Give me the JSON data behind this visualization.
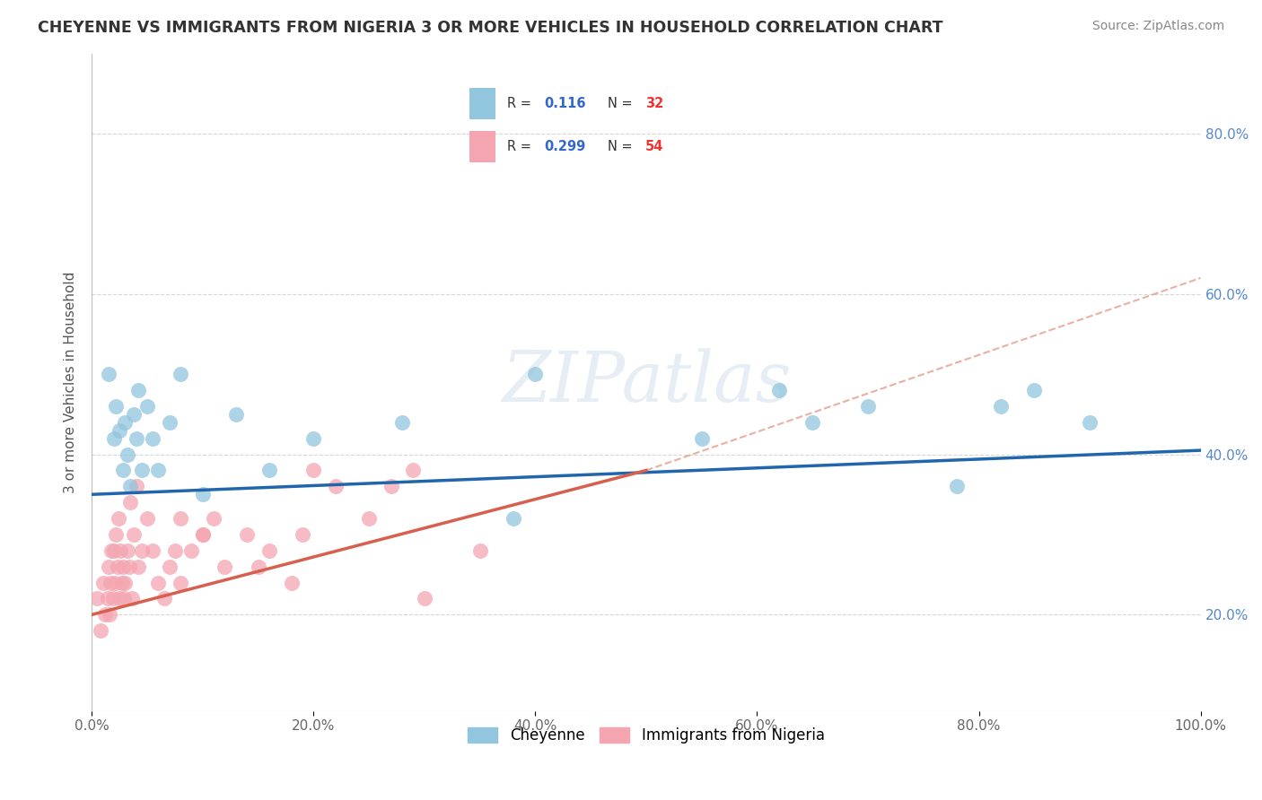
{
  "title": "CHEYENNE VS IMMIGRANTS FROM NIGERIA 3 OR MORE VEHICLES IN HOUSEHOLD CORRELATION CHART",
  "source": "Source: ZipAtlas.com",
  "ylabel": "3 or more Vehicles in Household",
  "legend_labels": [
    "Cheyenne",
    "Immigrants from Nigeria"
  ],
  "R_cheyenne": 0.116,
  "N_cheyenne": 32,
  "R_nigeria": 0.299,
  "N_nigeria": 54,
  "cheyenne_color": "#92c5de",
  "nigeria_color": "#f4a5b0",
  "cheyenne_line_color": "#2166ac",
  "nigeria_line_color": "#d6604d",
  "watermark": "ZIPatlas",
  "xlim": [
    0,
    100
  ],
  "ylim": [
    8,
    90
  ],
  "yticks": [
    20,
    40,
    60,
    80
  ],
  "xticks": [
    0,
    20,
    40,
    60,
    80,
    100
  ],
  "cheyenne_x": [
    1.5,
    2.0,
    2.2,
    2.5,
    2.8,
    3.0,
    3.2,
    3.5,
    3.8,
    4.0,
    4.2,
    4.5,
    5.0,
    5.5,
    6.0,
    7.0,
    8.0,
    10.0,
    13.0,
    16.0,
    20.0,
    28.0,
    40.0,
    55.0,
    62.0,
    70.0,
    78.0,
    85.0,
    90.0,
    38.0,
    65.0,
    82.0
  ],
  "cheyenne_y": [
    50,
    42,
    46,
    43,
    38,
    44,
    40,
    36,
    45,
    42,
    48,
    38,
    46,
    42,
    38,
    44,
    50,
    35,
    45,
    38,
    42,
    44,
    50,
    42,
    48,
    46,
    36,
    48,
    44,
    32,
    44,
    46
  ],
  "nigeria_x": [
    0.5,
    0.8,
    1.0,
    1.2,
    1.4,
    1.5,
    1.6,
    1.7,
    1.8,
    1.9,
    2.0,
    2.1,
    2.2,
    2.3,
    2.4,
    2.5,
    2.6,
    2.7,
    2.8,
    2.9,
    3.0,
    3.2,
    3.4,
    3.6,
    3.8,
    4.0,
    4.5,
    5.0,
    5.5,
    6.0,
    6.5,
    7.0,
    7.5,
    8.0,
    9.0,
    10.0,
    12.0,
    14.0,
    16.0,
    18.0,
    20.0,
    25.0,
    27.0,
    29.0,
    30.0,
    35.0,
    22.0,
    8.0,
    10.0,
    3.5,
    4.2,
    11.0,
    15.0,
    19.0
  ],
  "nigeria_y": [
    22,
    18,
    24,
    20,
    22,
    26,
    20,
    24,
    28,
    22,
    28,
    24,
    30,
    26,
    32,
    22,
    28,
    24,
    26,
    22,
    24,
    28,
    26,
    22,
    30,
    36,
    28,
    32,
    28,
    24,
    22,
    26,
    28,
    24,
    28,
    30,
    26,
    30,
    28,
    24,
    38,
    32,
    36,
    38,
    22,
    28,
    36,
    32,
    30,
    34,
    26,
    32,
    26,
    30
  ],
  "cheyenne_trend_start_y": 35.0,
  "cheyenne_trend_end_y": 40.5,
  "nigeria_trend_start_y": 20.0,
  "nigeria_trend_end_y": 38.0,
  "nigeria_dashed_end_y": 62.0
}
